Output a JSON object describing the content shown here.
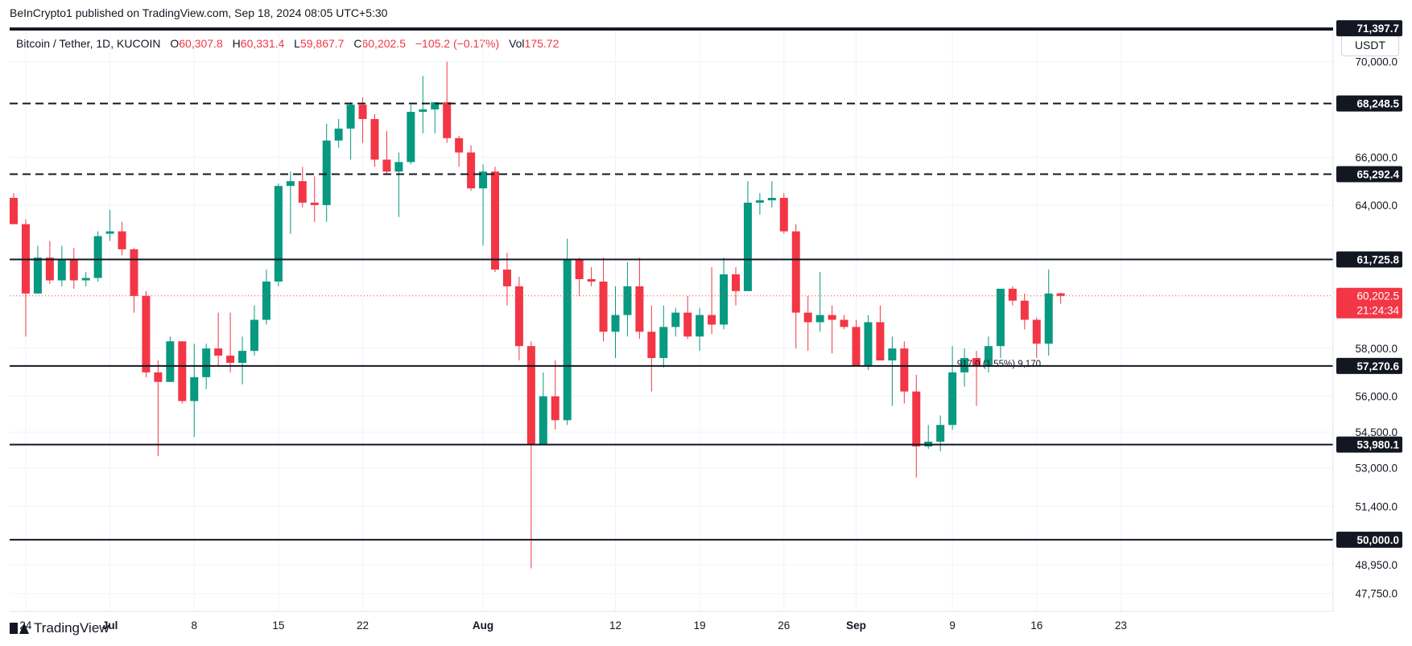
{
  "publish_line": "BeInCrypto1 published on TradingView.com, Sep 18, 2024 08:05 UTC+5:30",
  "legend": {
    "symbol": "Bitcoin / Tether, 1D, KUCOIN",
    "open_label": "O",
    "open": "60,307.8",
    "high_label": "H",
    "high": "60,331.4",
    "low_label": "L",
    "low": "59,867.7",
    "close_label": "C",
    "close": "60,202.5",
    "change": "−105.2 (−0.17%)",
    "vol_label": "Vol",
    "vol": "175.72"
  },
  "currency_button": "USDT",
  "brand": "TradingView",
  "colors": {
    "up": "#089981",
    "down": "#f23645",
    "line": "#131722",
    "grid": "#f0f3fa",
    "axis_text": "#131722"
  },
  "chart_data": {
    "type": "candlestick",
    "x_tick_labels": [
      "24",
      "Jul",
      "8",
      "15",
      "22",
      "Aug",
      "12",
      "19",
      "26",
      "Sep",
      "9",
      "16",
      "23"
    ],
    "y_tick_labels": [
      "70,000.0",
      "66,000.0",
      "64,000.0",
      "58,000.0",
      "56,000.0",
      "54,500.0",
      "53,000.0",
      "51,400.0",
      "48,950.0",
      "47,750.0"
    ],
    "ylim": [
      47000,
      71300
    ],
    "grid": true,
    "horizontal_levels": [
      {
        "value": 71397.7,
        "label": "71,397.7",
        "style": "solid"
      },
      {
        "value": 68248.5,
        "label": "68,248.5",
        "style": "dashed"
      },
      {
        "value": 65292.4,
        "label": "65,292.4",
        "style": "dashed"
      },
      {
        "value": 61725.8,
        "label": "61,725.8",
        "style": "solid"
      },
      {
        "value": 57270.6,
        "label": "57,270.6",
        "style": "solid"
      },
      {
        "value": 53980.1,
        "label": "53,980.1",
        "style": "solid"
      },
      {
        "value": 50000.0,
        "label": "50,000.0",
        "style": "solid"
      }
    ],
    "last_price": {
      "value": 60202.5,
      "label": "60,202.5",
      "countdown": "21:24:34"
    },
    "measure_annotation": "917.0 (1.55%) 9,170",
    "candles": [
      {
        "d": "2024-06-23",
        "o": 64300,
        "h": 64500,
        "l": 63200,
        "c": 63200
      },
      {
        "d": "2024-06-24",
        "o": 63200,
        "h": 63400,
        "l": 58500,
        "c": 60300
      },
      {
        "d": "2024-06-25",
        "o": 60300,
        "h": 62300,
        "l": 60300,
        "c": 61800
      },
      {
        "d": "2024-06-26",
        "o": 61800,
        "h": 62500,
        "l": 60700,
        "c": 60850
      },
      {
        "d": "2024-06-27",
        "o": 60850,
        "h": 62300,
        "l": 60600,
        "c": 61700
      },
      {
        "d": "2024-06-28",
        "o": 61700,
        "h": 62200,
        "l": 60500,
        "c": 60850
      },
      {
        "d": "2024-06-29",
        "o": 60850,
        "h": 61200,
        "l": 60600,
        "c": 60950
      },
      {
        "d": "2024-06-30",
        "o": 60950,
        "h": 62900,
        "l": 60800,
        "c": 62700
      },
      {
        "d": "2024-07-01",
        "o": 62800,
        "h": 63800,
        "l": 62500,
        "c": 62900
      },
      {
        "d": "2024-07-02",
        "o": 62900,
        "h": 63300,
        "l": 61900,
        "c": 62150
      },
      {
        "d": "2024-07-03",
        "o": 62150,
        "h": 62200,
        "l": 59500,
        "c": 60200
      },
      {
        "d": "2024-07-04",
        "o": 60200,
        "h": 60400,
        "l": 56800,
        "c": 57000
      },
      {
        "d": "2024-07-05",
        "o": 57000,
        "h": 57500,
        "l": 53500,
        "c": 56600
      },
      {
        "d": "2024-07-06",
        "o": 56600,
        "h": 58500,
        "l": 56600,
        "c": 58300
      },
      {
        "d": "2024-07-07",
        "o": 58300,
        "h": 58300,
        "l": 55700,
        "c": 55800
      },
      {
        "d": "2024-07-08",
        "o": 55800,
        "h": 58200,
        "l": 54300,
        "c": 56800
      },
      {
        "d": "2024-07-09",
        "o": 56800,
        "h": 58200,
        "l": 56300,
        "c": 58000
      },
      {
        "d": "2024-07-10",
        "o": 58000,
        "h": 59500,
        "l": 57300,
        "c": 57700
      },
      {
        "d": "2024-07-11",
        "o": 57700,
        "h": 59500,
        "l": 57000,
        "c": 57400
      },
      {
        "d": "2024-07-12",
        "o": 57400,
        "h": 58500,
        "l": 56500,
        "c": 57900
      },
      {
        "d": "2024-07-13",
        "o": 57900,
        "h": 59800,
        "l": 57700,
        "c": 59200
      },
      {
        "d": "2024-07-14",
        "o": 59200,
        "h": 61300,
        "l": 59000,
        "c": 60800
      },
      {
        "d": "2024-07-15",
        "o": 60800,
        "h": 64900,
        "l": 60600,
        "c": 64800
      },
      {
        "d": "2024-07-16",
        "o": 64800,
        "h": 65400,
        "l": 62800,
        "c": 65000
      },
      {
        "d": "2024-07-17",
        "o": 65000,
        "h": 65600,
        "l": 63900,
        "c": 64100
      },
      {
        "d": "2024-07-18",
        "o": 64100,
        "h": 65200,
        "l": 63300,
        "c": 64000
      },
      {
        "d": "2024-07-19",
        "o": 64000,
        "h": 67400,
        "l": 63300,
        "c": 66700
      },
      {
        "d": "2024-07-20",
        "o": 66700,
        "h": 67600,
        "l": 66400,
        "c": 67200
      },
      {
        "d": "2024-07-21",
        "o": 67200,
        "h": 68300,
        "l": 65900,
        "c": 68200
      },
      {
        "d": "2024-07-22",
        "o": 68200,
        "h": 68500,
        "l": 66600,
        "c": 67600
      },
      {
        "d": "2024-07-23",
        "o": 67600,
        "h": 67800,
        "l": 65600,
        "c": 65900
      },
      {
        "d": "2024-07-24",
        "o": 65900,
        "h": 67100,
        "l": 65300,
        "c": 65400
      },
      {
        "d": "2024-07-25",
        "o": 65400,
        "h": 66200,
        "l": 63500,
        "c": 65800
      },
      {
        "d": "2024-07-26",
        "o": 65800,
        "h": 68200,
        "l": 65700,
        "c": 67900
      },
      {
        "d": "2024-07-27",
        "o": 67900,
        "h": 69400,
        "l": 67000,
        "c": 68000
      },
      {
        "d": "2024-07-28",
        "o": 68000,
        "h": 68300,
        "l": 67000,
        "c": 68300
      },
      {
        "d": "2024-07-29",
        "o": 68300,
        "h": 70000,
        "l": 66600,
        "c": 66800
      },
      {
        "d": "2024-07-30",
        "o": 66800,
        "h": 66900,
        "l": 65600,
        "c": 66200
      },
      {
        "d": "2024-07-31",
        "o": 66200,
        "h": 66500,
        "l": 64600,
        "c": 64700
      },
      {
        "d": "2024-08-01",
        "o": 64700,
        "h": 65700,
        "l": 62300,
        "c": 65400
      },
      {
        "d": "2024-08-02",
        "o": 65400,
        "h": 65600,
        "l": 61200,
        "c": 61300
      },
      {
        "d": "2024-08-03",
        "o": 61300,
        "h": 62000,
        "l": 59800,
        "c": 60600
      },
      {
        "d": "2024-08-04",
        "o": 60600,
        "h": 61000,
        "l": 57500,
        "c": 58100
      },
      {
        "d": "2024-08-05",
        "o": 58100,
        "h": 58300,
        "l": 48800,
        "c": 54000
      },
      {
        "d": "2024-08-06",
        "o": 54000,
        "h": 57000,
        "l": 54000,
        "c": 56000
      },
      {
        "d": "2024-08-07",
        "o": 56000,
        "h": 57500,
        "l": 54600,
        "c": 55000
      },
      {
        "d": "2024-08-08",
        "o": 55000,
        "h": 62600,
        "l": 54800,
        "c": 61700
      },
      {
        "d": "2024-08-09",
        "o": 61700,
        "h": 61800,
        "l": 60200,
        "c": 60900
      },
      {
        "d": "2024-08-10",
        "o": 60900,
        "h": 61400,
        "l": 60600,
        "c": 60800
      },
      {
        "d": "2024-08-11",
        "o": 60800,
        "h": 61800,
        "l": 58300,
        "c": 58700
      },
      {
        "d": "2024-08-12",
        "o": 58700,
        "h": 60600,
        "l": 57600,
        "c": 59400
      },
      {
        "d": "2024-08-13",
        "o": 59400,
        "h": 61600,
        "l": 58500,
        "c": 60600
      },
      {
        "d": "2024-08-14",
        "o": 60600,
        "h": 61800,
        "l": 58400,
        "c": 58700
      },
      {
        "d": "2024-08-15",
        "o": 58700,
        "h": 59800,
        "l": 56200,
        "c": 57600
      },
      {
        "d": "2024-08-16",
        "o": 57600,
        "h": 59800,
        "l": 57200,
        "c": 58900
      },
      {
        "d": "2024-08-17",
        "o": 58900,
        "h": 59700,
        "l": 58500,
        "c": 59500
      },
      {
        "d": "2024-08-18",
        "o": 59500,
        "h": 60200,
        "l": 58400,
        "c": 58500
      },
      {
        "d": "2024-08-19",
        "o": 58500,
        "h": 59700,
        "l": 57900,
        "c": 59400
      },
      {
        "d": "2024-08-20",
        "o": 59400,
        "h": 61400,
        "l": 58600,
        "c": 59000
      },
      {
        "d": "2024-08-21",
        "o": 59000,
        "h": 61800,
        "l": 58800,
        "c": 61100
      },
      {
        "d": "2024-08-22",
        "o": 61100,
        "h": 61400,
        "l": 59800,
        "c": 60400
      },
      {
        "d": "2024-08-23",
        "o": 60400,
        "h": 65000,
        "l": 60400,
        "c": 64100
      },
      {
        "d": "2024-08-24",
        "o": 64100,
        "h": 64500,
        "l": 63600,
        "c": 64200
      },
      {
        "d": "2024-08-25",
        "o": 64200,
        "h": 65000,
        "l": 63900,
        "c": 64300
      },
      {
        "d": "2024-08-26",
        "o": 64300,
        "h": 64500,
        "l": 62800,
        "c": 62900
      },
      {
        "d": "2024-08-27",
        "o": 62900,
        "h": 63200,
        "l": 58000,
        "c": 59500
      },
      {
        "d": "2024-08-28",
        "o": 59500,
        "h": 60200,
        "l": 57900,
        "c": 59100
      },
      {
        "d": "2024-08-29",
        "o": 59100,
        "h": 61200,
        "l": 58700,
        "c": 59400
      },
      {
        "d": "2024-08-30",
        "o": 59400,
        "h": 59800,
        "l": 57800,
        "c": 59200
      },
      {
        "d": "2024-08-31",
        "o": 59200,
        "h": 59400,
        "l": 58800,
        "c": 58900
      },
      {
        "d": "2024-09-01",
        "o": 58900,
        "h": 59200,
        "l": 57300,
        "c": 57300
      },
      {
        "d": "2024-09-02",
        "o": 57300,
        "h": 59400,
        "l": 57100,
        "c": 59100
      },
      {
        "d": "2024-09-03",
        "o": 59100,
        "h": 59800,
        "l": 57500,
        "c": 57500
      },
      {
        "d": "2024-09-04",
        "o": 57500,
        "h": 58500,
        "l": 55600,
        "c": 58000
      },
      {
        "d": "2024-09-05",
        "o": 58000,
        "h": 58300,
        "l": 55700,
        "c": 56200
      },
      {
        "d": "2024-09-06",
        "o": 56200,
        "h": 56900,
        "l": 52600,
        "c": 53900
      },
      {
        "d": "2024-09-07",
        "o": 53900,
        "h": 54800,
        "l": 53800,
        "c": 54100
      },
      {
        "d": "2024-09-08",
        "o": 54100,
        "h": 55200,
        "l": 53700,
        "c": 54800
      },
      {
        "d": "2024-09-09",
        "o": 54800,
        "h": 58100,
        "l": 54600,
        "c": 57000
      },
      {
        "d": "2024-09-10",
        "o": 57000,
        "h": 58000,
        "l": 56400,
        "c": 57600
      },
      {
        "d": "2024-09-11",
        "o": 57600,
        "h": 57900,
        "l": 55600,
        "c": 57300
      },
      {
        "d": "2024-09-12",
        "o": 57300,
        "h": 58500,
        "l": 57000,
        "c": 58100
      },
      {
        "d": "2024-09-13",
        "o": 58100,
        "h": 60500,
        "l": 57600,
        "c": 60500
      },
      {
        "d": "2024-09-14",
        "o": 60500,
        "h": 60600,
        "l": 59800,
        "c": 60000
      },
      {
        "d": "2024-09-15",
        "o": 60000,
        "h": 60300,
        "l": 58800,
        "c": 59200
      },
      {
        "d": "2024-09-16",
        "o": 59200,
        "h": 59300,
        "l": 57600,
        "c": 58200
      },
      {
        "d": "2024-09-17",
        "o": 58200,
        "h": 61300,
        "l": 57700,
        "c": 60300
      },
      {
        "d": "2024-09-18",
        "o": 60307.8,
        "h": 60331.4,
        "l": 59867.7,
        "c": 60202.5
      }
    ]
  }
}
